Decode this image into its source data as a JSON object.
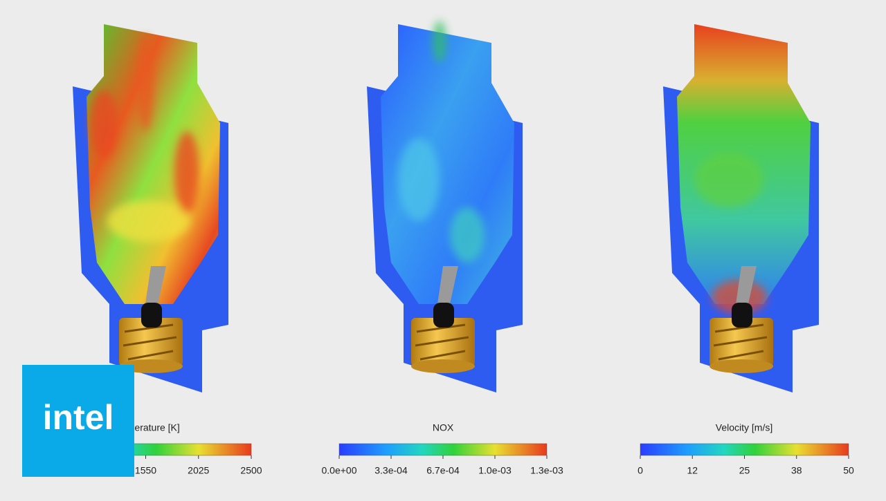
{
  "logo": "intel",
  "colorbars": [
    {
      "title": "Temperature [K]",
      "ticks": [
        1550,
        2025,
        2500
      ]
    },
    {
      "title": "NOX",
      "ticks": [
        "0.0e+00",
        "3.3e-04",
        "6.7e-04",
        "1.0e-03",
        "1.3e-03"
      ]
    },
    {
      "title": "Velocity [m/s]",
      "ticks": [
        0,
        12,
        25,
        38,
        50
      ]
    }
  ]
}
